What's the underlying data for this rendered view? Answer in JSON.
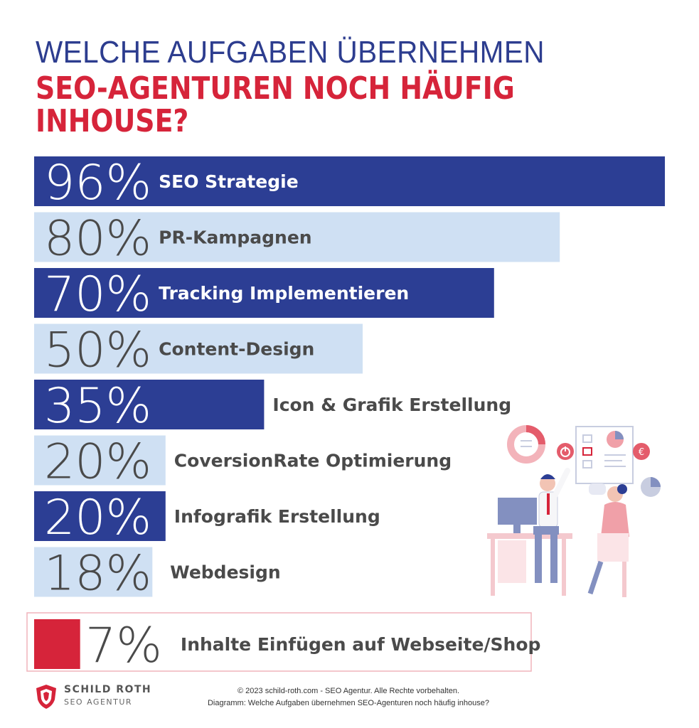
{
  "title": {
    "line1": "WELCHE AUFGABEN ÜBERNEHMEN",
    "line2": "SEO-AGENTUREN NOCH HÄUFIG",
    "line3": "INHOUSE?"
  },
  "colors": {
    "dark_bar": "#2c3e94",
    "light_bar": "#cfe0f3",
    "highlight": "#d6243a",
    "title_blue": "#2d3d8f",
    "title_red": "#d6243a"
  },
  "chart_data": {
    "type": "bar",
    "orientation": "horizontal",
    "unit": "%",
    "xlim": [
      0,
      100
    ],
    "grid": false,
    "categories": [
      "SEO Strategie",
      "PR-Kampagnen",
      "Tracking Implementieren",
      "Content-Design",
      "Icon & Grafik Erstellung",
      "CoversionRate Optimierung",
      "Infografik Erstellung",
      "Webdesign",
      "Inhalte Einfügen auf Webseite/Shop"
    ],
    "values": [
      96,
      80,
      70,
      50,
      35,
      20,
      20,
      18,
      7
    ],
    "value_labels": [
      "96%",
      "80%",
      "70%",
      "50%",
      "35%",
      "20%",
      "20%",
      "18%",
      "7%"
    ],
    "bar_styles": [
      "dark",
      "light",
      "dark",
      "light",
      "dark",
      "light",
      "dark",
      "light",
      "highlight"
    ]
  },
  "logo": {
    "name": "SCHILD ROTH",
    "subtitle": "SEO AGENTUR"
  },
  "footer": {
    "line1": "© 2023 schild-roth.com - SEO Agentur. Alle Rechte vorbehalten.",
    "line2": "Diagramm: Welche Aufgaben übernehmen SEO-Agenturen noch häufig inhouse?"
  }
}
